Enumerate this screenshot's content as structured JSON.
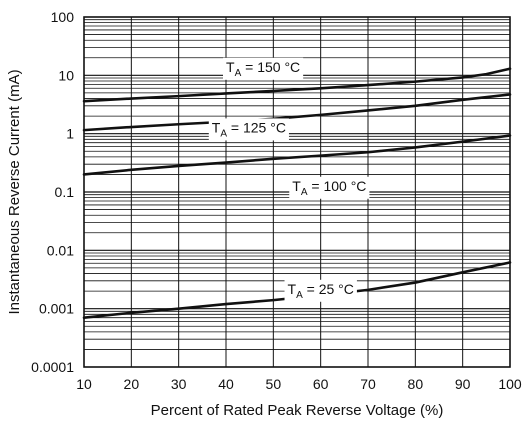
{
  "chart_data": {
    "type": "line",
    "title": "",
    "xlabel": "Percent of Rated Peak Reverse Voltage (%)",
    "ylabel": "Instantaneous Reverse Current (mA)",
    "xlim": [
      10,
      100
    ],
    "ylim": [
      0.0001,
      100
    ],
    "yscale": "log",
    "grid": true,
    "legend": "none",
    "x_ticks": [
      "10",
      "20",
      "30",
      "40",
      "50",
      "60",
      "70",
      "80",
      "90",
      "100"
    ],
    "y_ticks": [
      "0.0001",
      "0.001",
      "0.01",
      "0.1",
      "1",
      "10",
      "100"
    ],
    "series": [
      {
        "name": "T_A = 150 °C",
        "label_main": "T",
        "label_sub": "A",
        "label_rest": " = 150 °C",
        "label_at": [
          40,
          11.5
        ],
        "x": [
          10,
          20,
          30,
          40,
          50,
          60,
          70,
          80,
          90,
          95,
          100
        ],
        "y": [
          3.6,
          4.0,
          4.4,
          4.9,
          5.4,
          6.0,
          6.8,
          7.8,
          9.2,
          10.5,
          13.0
        ]
      },
      {
        "name": "T_A = 125 °C",
        "label_main": "T",
        "label_sub": "A",
        "label_rest": " = 125 °C",
        "label_at": [
          37,
          1.05
        ],
        "x": [
          10,
          20,
          30,
          40,
          50,
          60,
          70,
          80,
          90,
          100
        ],
        "y": [
          1.15,
          1.3,
          1.45,
          1.6,
          1.8,
          2.1,
          2.5,
          3.0,
          3.8,
          4.7
        ]
      },
      {
        "name": "T_A = 100 °C",
        "label_main": "T",
        "label_sub": "A",
        "label_rest": " = 100 °C",
        "label_at": [
          54,
          0.105
        ],
        "x": [
          10,
          20,
          30,
          40,
          50,
          60,
          70,
          80,
          90,
          100
        ],
        "y": [
          0.2,
          0.24,
          0.28,
          0.32,
          0.37,
          0.42,
          0.48,
          0.58,
          0.73,
          0.93
        ]
      },
      {
        "name": "T_A = 25 °C",
        "label_main": "T",
        "label_sub": "A",
        "label_rest": " = 25 °C",
        "label_at": [
          53,
          0.0018
        ],
        "x": [
          10,
          20,
          30,
          40,
          50,
          60,
          70,
          80,
          90,
          100
        ],
        "y": [
          0.0007,
          0.00085,
          0.001,
          0.0012,
          0.0014,
          0.0017,
          0.0021,
          0.0028,
          0.0042,
          0.0062
        ]
      }
    ]
  }
}
